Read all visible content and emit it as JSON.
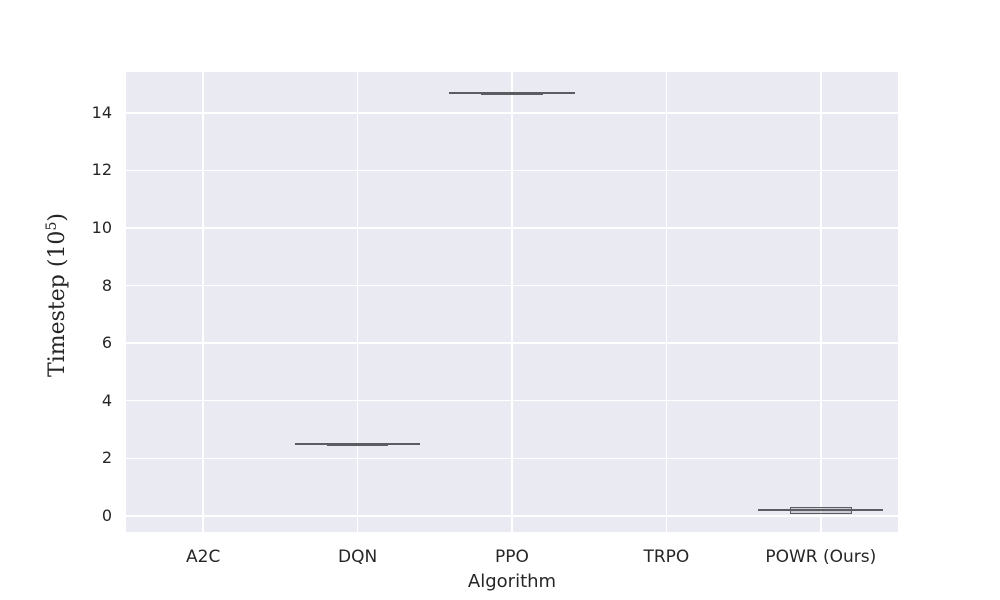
{
  "chart_data": {
    "type": "box",
    "title": "",
    "xlabel": "Algorithm",
    "ylabel": "Timestep (10⁵)",
    "ylabel_parts": {
      "prefix": "Timestep (10",
      "sup": "5",
      "suffix": ")"
    },
    "categories": [
      "A2C",
      "DQN",
      "PPO",
      "TRPO",
      "POWR (Ours)"
    ],
    "yticks": [
      0,
      2,
      4,
      6,
      8,
      10,
      12,
      14
    ],
    "ylim": [
      -0.56,
      15.42
    ],
    "grid": true,
    "legend": "none",
    "series": [
      {
        "name": "A2C",
        "stats": null
      },
      {
        "name": "DQN",
        "stats": {
          "whislo": 2.45,
          "q1": 2.47,
          "med": 2.49,
          "q3": 2.51,
          "whishi": 2.53
        }
      },
      {
        "name": "PPO",
        "stats": {
          "whislo": 14.63,
          "q1": 14.66,
          "med": 14.68,
          "q3": 14.7,
          "whishi": 14.72
        }
      },
      {
        "name": "TRPO",
        "stats": null
      },
      {
        "name": "POWR (Ours)",
        "stats": {
          "whislo": 0.04,
          "q1": 0.08,
          "med": 0.2,
          "q3": 0.32,
          "whishi": 0.36
        }
      }
    ],
    "colors": {
      "plot_background": "#eaeaf2",
      "gridline": "#ffffff",
      "box_line": "#5a5e63",
      "box_fill": "rgba(100,104,110,0.22)",
      "text": "#262626"
    }
  }
}
